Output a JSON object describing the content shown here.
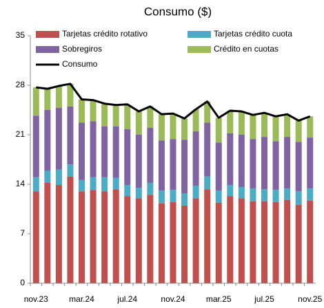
{
  "chart_data": {
    "type": "stacked-bar-line",
    "title": "Consumo ($)",
    "categories": [
      "nov.23",
      null,
      null,
      null,
      "mar.24",
      null,
      null,
      null,
      "jul.24",
      null,
      null,
      null,
      "nov.24",
      null,
      null,
      null,
      "mar.25",
      null,
      null,
      null,
      "jul.25",
      null,
      null,
      null,
      "nov.25"
    ],
    "series": [
      {
        "name": "Tarjetas crédito rotativo",
        "color": "#c0504d",
        "values": [
          13,
          14.2,
          13.9,
          15.1,
          13,
          13.2,
          13,
          13.3,
          12.3,
          12,
          12.5,
          11.3,
          11.5,
          11,
          12,
          13.3,
          11.4,
          12.3,
          12,
          11.6,
          11.6,
          11.5,
          11.8,
          11.1,
          11.7
        ]
      },
      {
        "name": "Tarjetas crédito cuota",
        "color": "#4bacc6",
        "values": [
          2,
          1.7,
          2.2,
          1.7,
          1.6,
          1.8,
          2,
          1.6,
          1.6,
          1.5,
          1.7,
          1.8,
          1.7,
          1.7,
          1.8,
          1.8,
          1.7,
          1.6,
          1.6,
          1.8,
          1.7,
          1.7,
          1.6,
          1.9,
          1.7
        ]
      },
      {
        "name": "Sobregiros",
        "color": "#8064a2",
        "values": [
          8.7,
          8.6,
          8.7,
          8.2,
          8.1,
          7.9,
          7.2,
          7.3,
          7.9,
          7.5,
          7.8,
          7.1,
          7.2,
          7.6,
          7.7,
          7.6,
          6.8,
          7.3,
          7.4,
          7,
          7.4,
          6.9,
          7.3,
          7,
          7.2
        ]
      },
      {
        "name": "Crédito en cuotas",
        "color": "#9bbb59",
        "values": [
          4,
          3,
          3.1,
          3.2,
          3.3,
          3,
          3.2,
          3,
          3.5,
          3.3,
          3,
          3.7,
          3.6,
          3,
          3.1,
          3,
          3.5,
          3.2,
          3.3,
          3.4,
          3.4,
          3.5,
          3.2,
          3,
          3
        ]
      }
    ],
    "line": {
      "name": "Consumo",
      "color": "#000000",
      "values": [
        27.7,
        27.5,
        27.9,
        28.2,
        26,
        25.9,
        25.4,
        25.2,
        25.3,
        24.3,
        25,
        23.9,
        24,
        23.3,
        24.6,
        25.7,
        23.4,
        24.4,
        24.3,
        23.8,
        24.1,
        23.6,
        23.9,
        23,
        23.6
      ]
    },
    "ylim": [
      0,
      35
    ],
    "yticks": [
      0,
      7,
      14,
      21,
      28,
      35
    ]
  }
}
